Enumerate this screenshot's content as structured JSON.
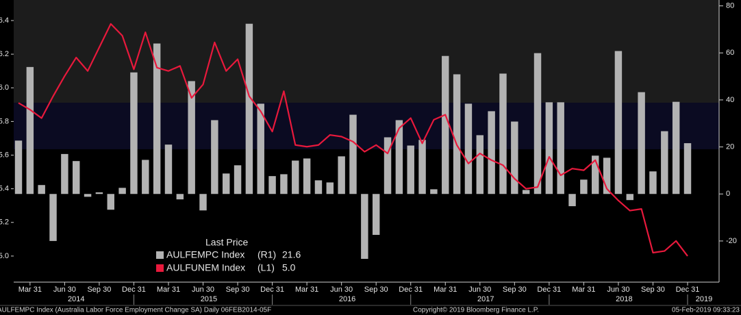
{
  "chart_data": {
    "type": "bar_line",
    "x": [
      "2014-02",
      "2014-03",
      "2014-04",
      "2014-05",
      "2014-06",
      "2014-07",
      "2014-08",
      "2014-09",
      "2014-10",
      "2014-11",
      "2014-12",
      "2015-01",
      "2015-02",
      "2015-03",
      "2015-04",
      "2015-05",
      "2015-06",
      "2015-07",
      "2015-08",
      "2015-09",
      "2015-10",
      "2015-11",
      "2015-12",
      "2016-01",
      "2016-02",
      "2016-03",
      "2016-04",
      "2016-05",
      "2016-06",
      "2016-07",
      "2016-08",
      "2016-09",
      "2016-10",
      "2016-11",
      "2016-12",
      "2017-01",
      "2017-02",
      "2017-03",
      "2017-04",
      "2017-05",
      "2017-06",
      "2017-07",
      "2017-08",
      "2017-09",
      "2017-10",
      "2017-11",
      "2017-12",
      "2018-01",
      "2018-02",
      "2018-03",
      "2018-04",
      "2018-05",
      "2018-06",
      "2018-07",
      "2018-08",
      "2018-09",
      "2018-10",
      "2018-11",
      "2018-12"
    ],
    "series": [
      {
        "name": "AULFEMPC Index",
        "legend_axis": "(R1)",
        "last_label": "21.6",
        "type": "bar",
        "axis": "y2",
        "color": "#b3b3b3",
        "values": [
          22.7,
          54,
          3.8,
          -20,
          17,
          14,
          -1.2,
          0.7,
          -6.7,
          2.6,
          51.7,
          14.5,
          64,
          21,
          -2.3,
          48,
          -7,
          31.4,
          8.7,
          12.2,
          72.4,
          38.4,
          7.6,
          8.4,
          14.2,
          15.1,
          5.8,
          4.9,
          16,
          33.7,
          -27.6,
          -17.4,
          24.1,
          31.4,
          20.6,
          23,
          2,
          58.7,
          50.9,
          38.4,
          25,
          35.2,
          51.2,
          30.8,
          1.7,
          59.9,
          39,
          39,
          -5.2,
          6.1,
          16.3,
          15.4,
          60.8,
          -2.6,
          43.3,
          9.6,
          26.7,
          39.2,
          21.6
        ]
      },
      {
        "name": "AULFUNEM Index",
        "legend_axis": "(L1)",
        "last_label": "5.0",
        "type": "line",
        "axis": "y",
        "color": "#e8193c",
        "values": [
          5.91,
          5.87,
          5.82,
          5.95,
          6.07,
          6.18,
          6.1,
          6.24,
          6.38,
          6.31,
          6.11,
          6.33,
          6.12,
          6.1,
          6.13,
          5.94,
          6.02,
          6.27,
          6.1,
          6.17,
          5.95,
          5.86,
          5.74,
          5.98,
          5.66,
          5.65,
          5.66,
          5.72,
          5.71,
          5.68,
          5.62,
          5.66,
          5.61,
          5.76,
          5.82,
          5.67,
          5.81,
          5.84,
          5.66,
          5.55,
          5.61,
          5.57,
          5.54,
          5.46,
          5.4,
          5.41,
          5.59,
          5.48,
          5.52,
          5.51,
          5.57,
          5.4,
          5.33,
          5.27,
          5.28,
          5.02,
          5.03,
          5.09,
          5.0
        ]
      }
    ],
    "ylim": [
      4.845,
      6.522
    ],
    "yticks": [
      5.0,
      5.2,
      5.4,
      5.6,
      5.8,
      6.0,
      6.2,
      6.4
    ],
    "ytick_labels": [
      "5.0",
      "5.2",
      "5.4",
      "5.6",
      "5.8",
      "6.0",
      "6.2",
      "6.4"
    ],
    "y2lim": [
      -37.5,
      82.5
    ],
    "y2ticks": [
      -20,
      0,
      20,
      40,
      60,
      80
    ],
    "xticks": [
      {
        "value": "2014-03",
        "label": "Mar 31"
      },
      {
        "value": "2014-06",
        "label": "Jun 30"
      },
      {
        "value": "2014-09",
        "label": "Sep 30"
      },
      {
        "value": "2014-12",
        "label": "Dec 31"
      },
      {
        "value": "2015-03",
        "label": "Mar 31"
      },
      {
        "value": "2015-06",
        "label": "Jun 30"
      },
      {
        "value": "2015-09",
        "label": "Sep 30"
      },
      {
        "value": "2015-12",
        "label": "Dec 31"
      },
      {
        "value": "2016-03",
        "label": "Mar 31"
      },
      {
        "value": "2016-06",
        "label": "Jun 30"
      },
      {
        "value": "2016-09",
        "label": "Sep 30"
      },
      {
        "value": "2016-12",
        "label": "Dec 31"
      },
      {
        "value": "2017-03",
        "label": "Mar 31"
      },
      {
        "value": "2017-06",
        "label": "Jun 30"
      },
      {
        "value": "2017-09",
        "label": "Sep 30"
      },
      {
        "value": "2017-12",
        "label": "Dec 31"
      },
      {
        "value": "2018-03",
        "label": "Mar 31"
      },
      {
        "value": "2018-06",
        "label": "Jun 30"
      },
      {
        "value": "2018-09",
        "label": "Sep 30"
      },
      {
        "value": "2018-12",
        "label": "Dec 31"
      }
    ],
    "year_labels": [
      2014,
      2015,
      2016,
      2017,
      2018,
      2019
    ],
    "legend_title": "Last Price",
    "footer_left": "AULFEMPC Index (Australia Labor Force Employment Change SA)  Daily 06FEB2014-05F",
    "footer_center": "Copyright© 2019 Bloomberg Finance L.P.",
    "footer_right": "05-Feb-2019 09:33:23"
  }
}
